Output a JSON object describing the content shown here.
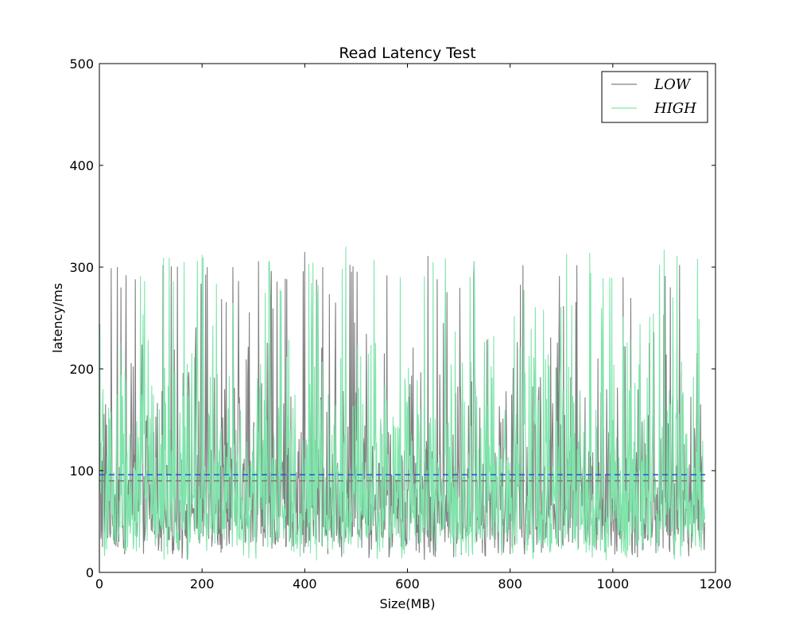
{
  "chart_data": {
    "type": "line",
    "title": "Read Latency Test",
    "xlabel": "Size(MB)",
    "ylabel": "latency/ms",
    "xlim": [
      0,
      1200
    ],
    "ylim": [
      0,
      500
    ],
    "xticks": [
      0,
      200,
      400,
      600,
      800,
      1000,
      1200
    ],
    "yticks": [
      0,
      100,
      200,
      300,
      400,
      500
    ],
    "grid": false,
    "legend_position": "top-right",
    "x_count": 1180,
    "series": [
      {
        "name": "LOW",
        "color": "#808080",
        "mean": 90,
        "range": [
          0,
          315
        ],
        "peaks": [
          {
            "x": 35,
            "y": 300
          },
          {
            "x": 70,
            "y": 288
          },
          {
            "x": 124,
            "y": 302
          },
          {
            "x": 210,
            "y": 300
          },
          {
            "x": 260,
            "y": 300
          },
          {
            "x": 310,
            "y": 306
          },
          {
            "x": 400,
            "y": 315
          },
          {
            "x": 560,
            "y": 292
          },
          {
            "x": 640,
            "y": 311
          },
          {
            "x": 730,
            "y": 306
          },
          {
            "x": 825,
            "y": 302
          },
          {
            "x": 930,
            "y": 302
          },
          {
            "x": 1020,
            "y": 290
          },
          {
            "x": 1130,
            "y": 302
          }
        ]
      },
      {
        "name": "HIGH",
        "color": "#7fe5ab",
        "mean": 96,
        "range": [
          0,
          320
        ],
        "peaks": [
          {
            "x": 125,
            "y": 309
          },
          {
            "x": 165,
            "y": 305
          },
          {
            "x": 200,
            "y": 312
          },
          {
            "x": 330,
            "y": 305
          },
          {
            "x": 480,
            "y": 320
          },
          {
            "x": 535,
            "y": 307
          },
          {
            "x": 650,
            "y": 305
          },
          {
            "x": 730,
            "y": 306
          },
          {
            "x": 910,
            "y": 313
          },
          {
            "x": 955,
            "y": 314
          },
          {
            "x": 1100,
            "y": 317
          },
          {
            "x": 1125,
            "y": 311
          }
        ]
      }
    ],
    "reference_lines": [
      {
        "series": "HIGH",
        "y": 96,
        "color": "#1f4fe0",
        "style": "dashed"
      },
      {
        "series": "LOW",
        "y": 90,
        "color": "#808080",
        "style": "dashed"
      }
    ]
  }
}
